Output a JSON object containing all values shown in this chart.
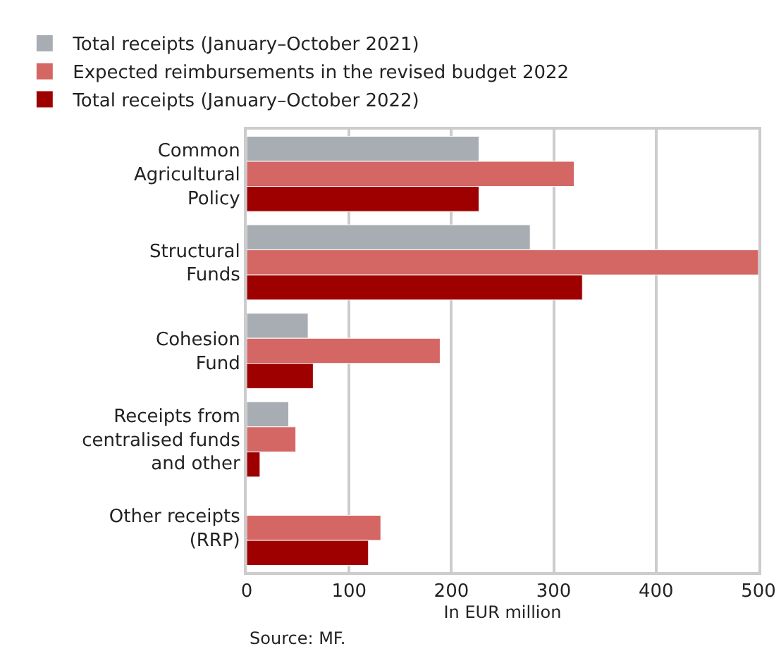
{
  "chart_data": {
    "type": "bar",
    "orientation": "horizontal",
    "categories": [
      "Common\nAgricultural\nPolicy",
      "Structural\nFunds",
      "Cohesion\nFund",
      "Receipts from\ncentralised funds\nand other",
      "Other receipts\n(RRP)"
    ],
    "series": [
      {
        "name": "Total receipts (January–October 2021)",
        "color": "#a7adb3",
        "values": [
          227,
          277,
          60,
          41,
          null
        ]
      },
      {
        "name": "Expected reimbursements in the revised budget 2022",
        "color": "#d46664",
        "values": [
          320,
          500,
          189,
          48,
          131
        ]
      },
      {
        "name": "Total receipts (January–October 2022)",
        "color": "#9e0000",
        "values": [
          227,
          328,
          65,
          13,
          119
        ]
      }
    ],
    "xlim": [
      0,
      500
    ],
    "xticks": [
      0,
      100,
      200,
      300,
      400,
      500
    ],
    "xlabel": "In EUR million",
    "grid": "x",
    "legend": "top left",
    "annotations": [
      "Source: MF."
    ]
  }
}
